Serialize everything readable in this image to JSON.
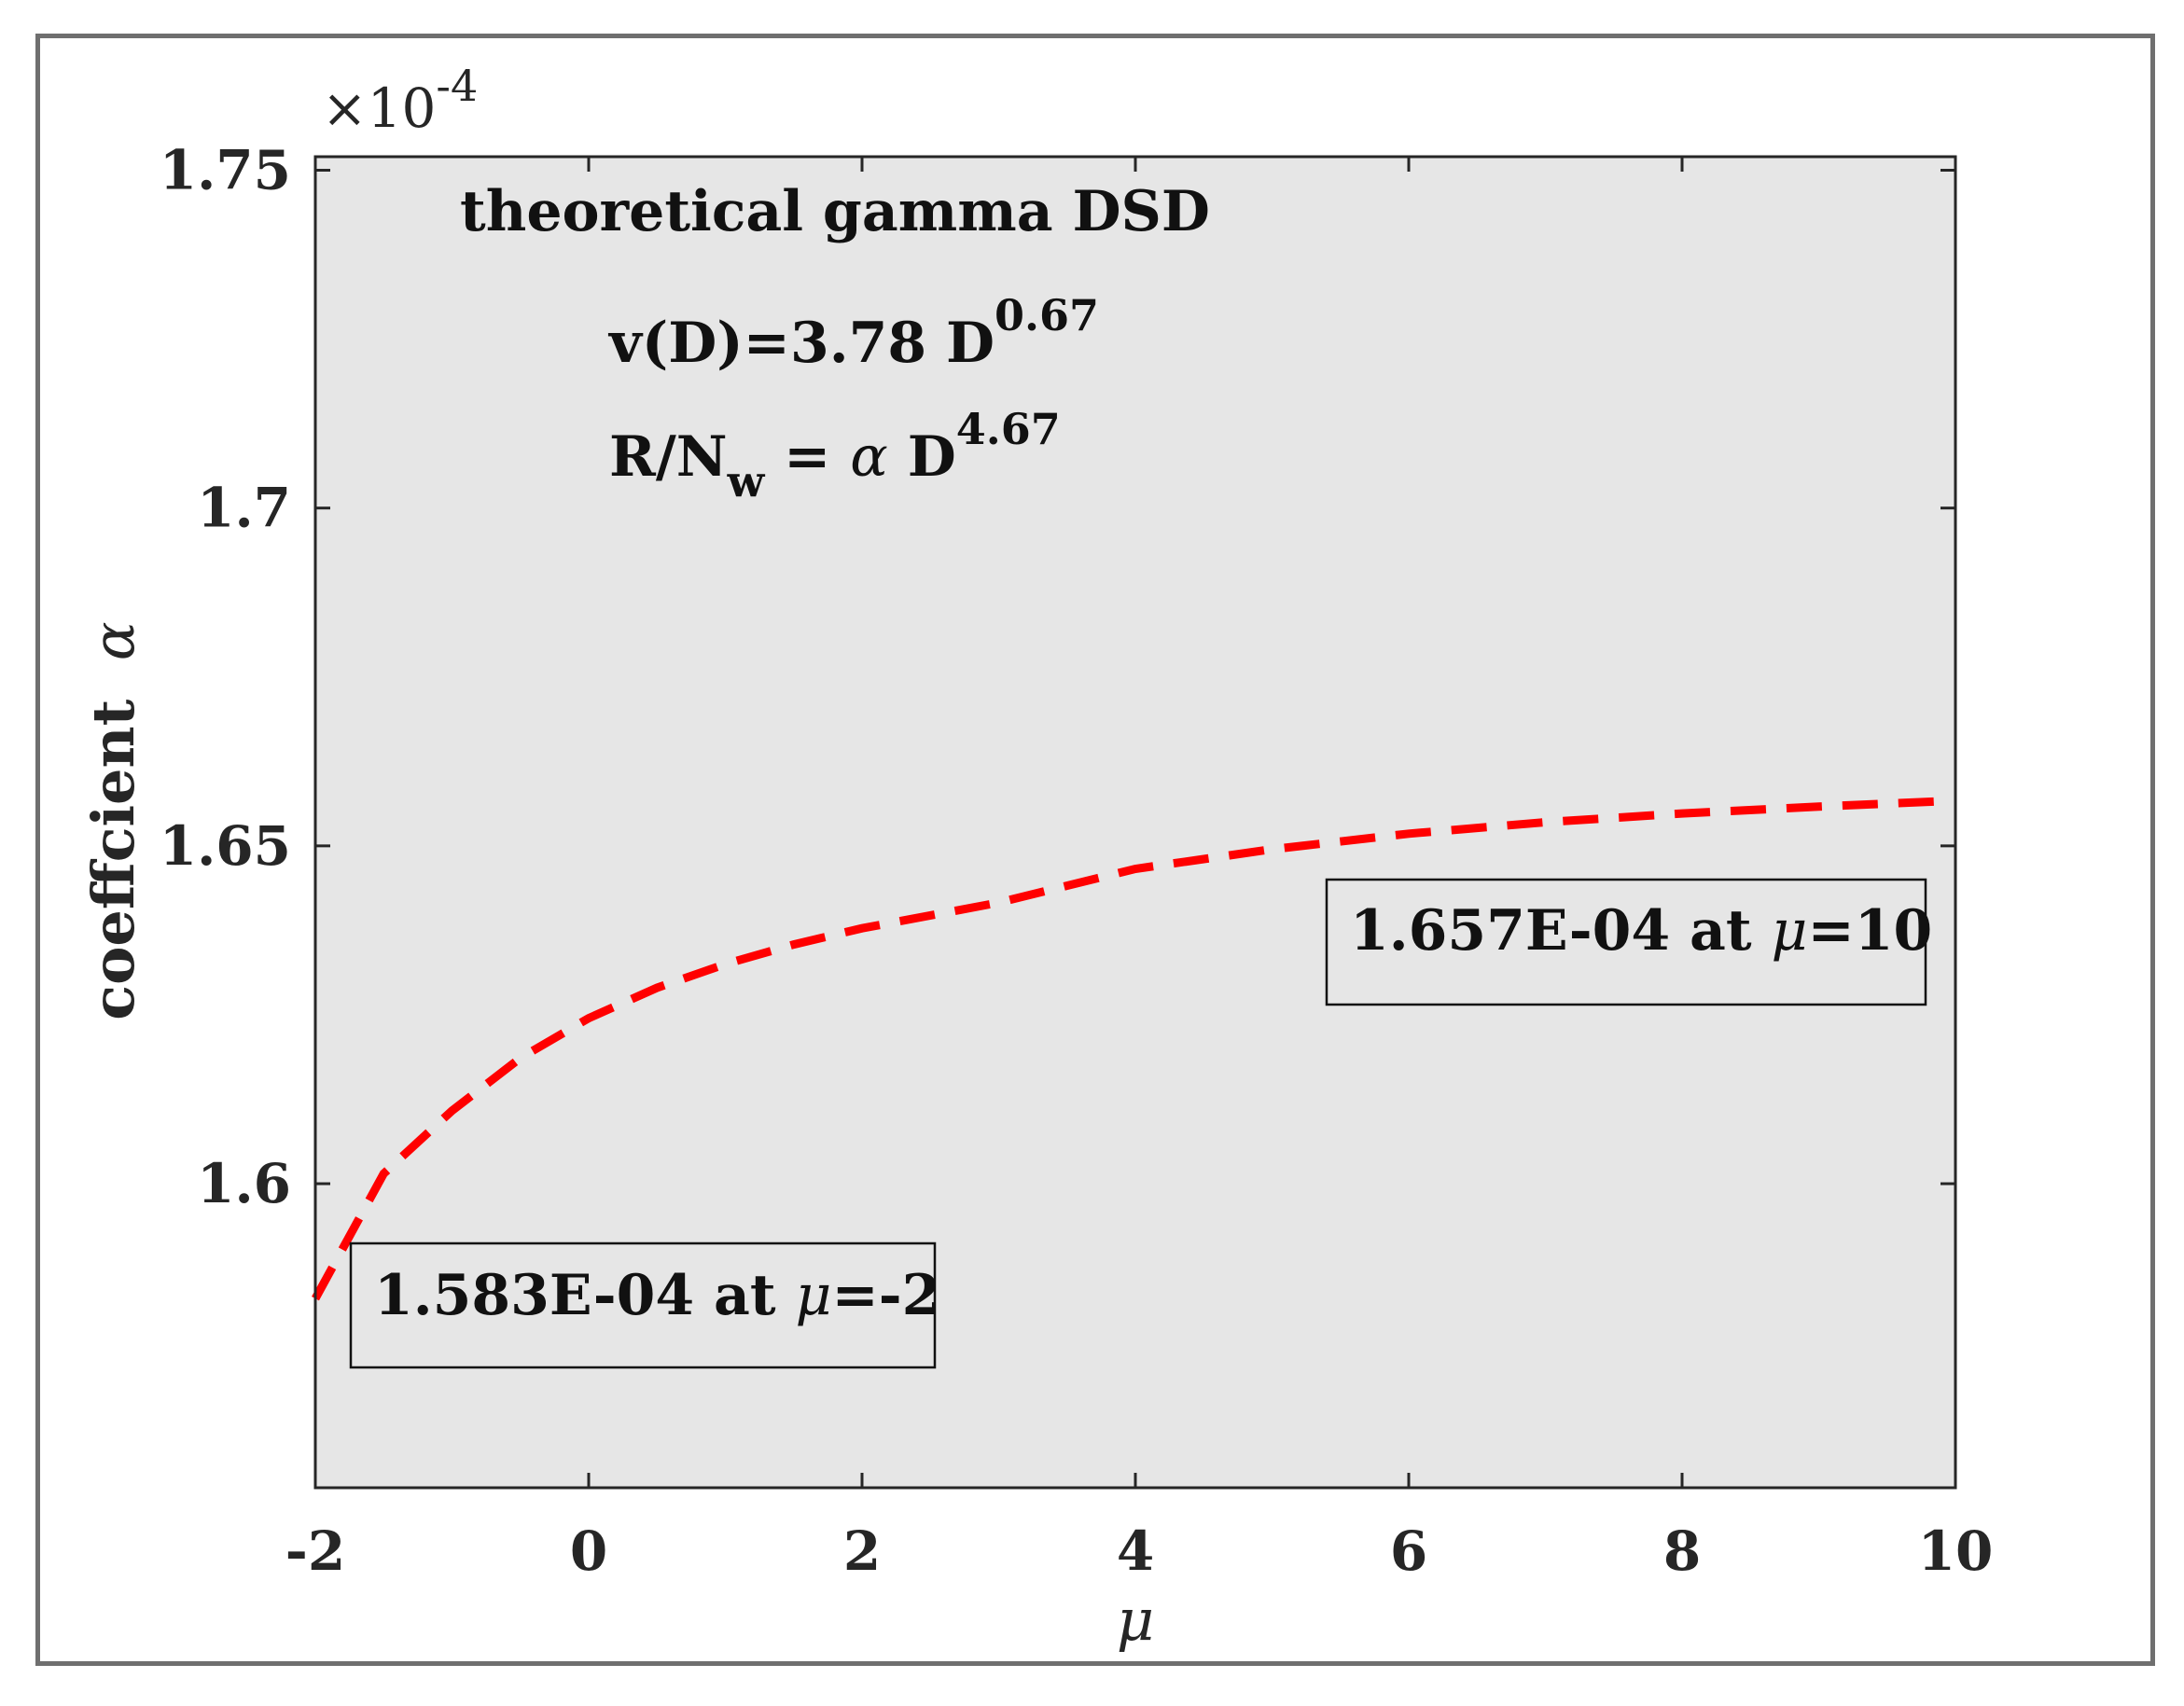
{
  "chart_data": {
    "type": "line",
    "title": "",
    "xlabel": "μ",
    "ylabel": "coeffcient",
    "ylabel_symbol": "α",
    "y_scale_note": "×10",
    "y_scale_exponent": "-4",
    "xlim": [
      -2,
      10
    ],
    "ylim": [
      1.555,
      1.752
    ],
    "x_ticks": [
      -2,
      0,
      2,
      4,
      6,
      8,
      10
    ],
    "x_tick_labels": [
      "-2",
      "0",
      "2",
      "4",
      "6",
      "8",
      "10"
    ],
    "y_ticks": [
      1.6,
      1.65,
      1.7,
      1.75
    ],
    "y_tick_labels": [
      "1.6",
      "1.65",
      "1.7",
      "1.75"
    ],
    "grid": false,
    "series": [
      {
        "name": "alpha(mu)",
        "color": "#ff0000",
        "style": "dashed",
        "x": [
          -2,
          -1.5,
          -1,
          -0.5,
          0,
          0.5,
          1,
          1.5,
          2,
          3,
          4,
          5,
          6,
          7,
          8,
          9,
          10
        ],
        "values": [
          1.583,
          1.6015,
          1.6108,
          1.6186,
          1.6245,
          1.629,
          1.6325,
          1.6354,
          1.6378,
          1.6416,
          1.6466,
          1.6495,
          1.6518,
          1.6535,
          1.6548,
          1.6558,
          1.6567
        ]
      }
    ],
    "annotations": [
      {
        "title": "theoretical gamma DSD",
        "line1_prefix": "v(D)=3.78 D",
        "line1_exp": "0.67",
        "line2_prefix": "R/N",
        "line2_sub": "w",
        "line2_mid": " = ",
        "line2_symbol": "α",
        "line2_suffix": " D",
        "line2_exp": "4.67"
      }
    ],
    "callouts": [
      {
        "value_text": "1.657E-04 at ",
        "symbol": "μ",
        "tail": "=10"
      },
      {
        "value_text": "1.583E-04 at ",
        "symbol": "μ",
        "tail": "=-2"
      }
    ]
  },
  "colors": {
    "plot_background": "#e6e6e6",
    "axes": "#262626",
    "frame": "#6f6f6f",
    "line": "#ff0000"
  }
}
